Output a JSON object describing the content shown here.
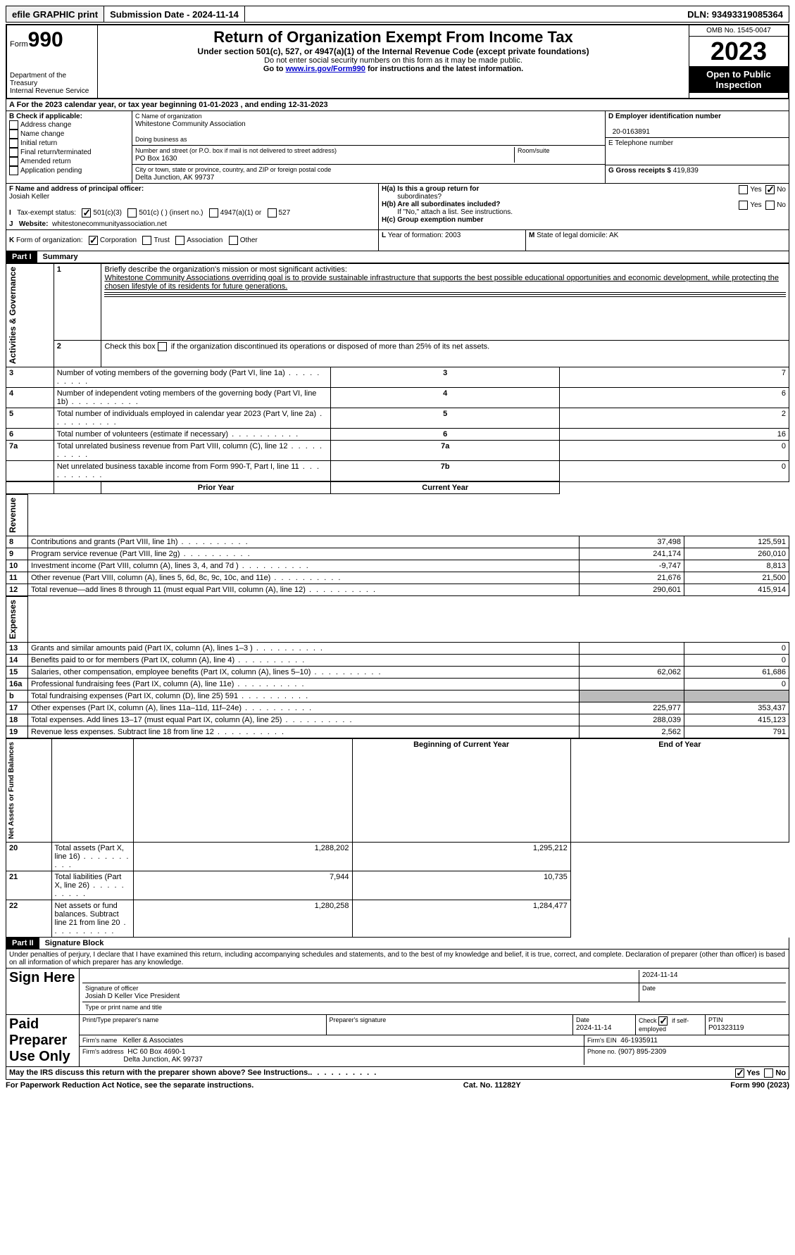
{
  "topbar": {
    "efile": "efile GRAPHIC print",
    "submission": "Submission Date - 2024-11-14",
    "dln": "DLN: 93493319085364"
  },
  "header": {
    "form_prefix": "Form",
    "form_no": "990",
    "title": "Return of Organization Exempt From Income Tax",
    "sub1": "Under section 501(c), 527, or 4947(a)(1) of the Internal Revenue Code (except private foundations)",
    "sub2": "Do not enter social security numbers on this form as it may be made public.",
    "sub3_a": "Go to ",
    "sub3_link": "www.irs.gov/Form990",
    "sub3_b": " for instructions and the latest information.",
    "dept": "Department of the Treasury",
    "irs": "Internal Revenue Service",
    "omb": "OMB No. 1545-0047",
    "year": "2023",
    "inspect1": "Open to Public",
    "inspect2": "Inspection"
  },
  "A": {
    "label": "A",
    "text": "For the 2023 calendar year, or tax year beginning 01-01-2023",
    "mid": ", and ending 12-31-2023"
  },
  "B": {
    "label": "B Check if applicable:",
    "items": [
      "Address change",
      "Name change",
      "Initial return",
      "Final return/terminated",
      "Amended return",
      "Application pending"
    ]
  },
  "C": {
    "name_lbl": "C Name of organization",
    "name": "Whitestone Community Association",
    "dba_lbl": "Doing business as",
    "dba": "",
    "street_lbl": "Number and street (or P.O. box if mail is not delivered to street address)",
    "street": "PO Box 1630",
    "room_lbl": "Room/suite",
    "room": "",
    "city_lbl": "City or town, state or province, country, and ZIP or foreign postal code",
    "city": "Delta Junction, AK  99737"
  },
  "D": {
    "lbl": "D Employer identification number",
    "val": "20-0163891"
  },
  "E": {
    "lbl": "E Telephone number",
    "val": ""
  },
  "G": {
    "lbl": "G Gross receipts $",
    "val": "419,839"
  },
  "F": {
    "lbl": "F  Name and address of principal officer:",
    "val": "Josiah Keller"
  },
  "H": {
    "a": "H(a)  Is this a group return for",
    "a2": "subordinates?",
    "b": "H(b)  Are all subordinates included?",
    "b2": "If \"No,\" attach a list. See instructions.",
    "c": "H(c)  Group exemption number",
    "yes": "Yes",
    "no": "No"
  },
  "I": {
    "lbl": "I",
    "text": "Tax-exempt status:",
    "opts": [
      "501(c)(3)",
      "501(c) (  ) (insert no.)",
      "4947(a)(1) or",
      "527"
    ]
  },
  "J": {
    "lbl": "J",
    "text": "Website:",
    "val": "whitestonecommunityassociation.net"
  },
  "K": {
    "lbl": "K",
    "text": "Form of organization:",
    "opts": [
      "Corporation",
      "Trust",
      "Association",
      "Other"
    ]
  },
  "L": {
    "lbl": "L",
    "text": "Year of formation: 2003"
  },
  "M": {
    "lbl": "M",
    "text": "State of legal domicile: AK"
  },
  "part1": {
    "hdr": "Part I",
    "ttl": "Summary"
  },
  "sections": {
    "s1": "Activities & Governance",
    "s2": "Revenue",
    "s3": "Expenses",
    "s4": "Net Assets or Fund Balances"
  },
  "summary": {
    "l1a": "1",
    "l1b": "Briefly describe the organization's mission or most significant activities:",
    "l1c": "Whitestone Community Associations overriding goal is to provide sustainable infrastructure that supports the best possible educational opportunities and economic development, while protecting the chosen lifestyle of its residents for future generations.",
    "l2": "Check this box",
    "l2b": "if the organization discontinued its operations or disposed of more than 25% of its net assets.",
    "rows1": [
      {
        "n": "3",
        "d": "Number of voting members of the governing body (Part VI, line 1a)",
        "b": "3",
        "v": "7"
      },
      {
        "n": "4",
        "d": "Number of independent voting members of the governing body (Part VI, line 1b)",
        "b": "4",
        "v": "6"
      },
      {
        "n": "5",
        "d": "Total number of individuals employed in calendar year 2023 (Part V, line 2a)",
        "b": "5",
        "v": "2"
      },
      {
        "n": "6",
        "d": "Total number of volunteers (estimate if necessary)",
        "b": "6",
        "v": "16"
      },
      {
        "n": "7a",
        "d": "Total unrelated business revenue from Part VIII, column (C), line 12",
        "b": "7a",
        "v": "0"
      },
      {
        "n": "",
        "d": "Net unrelated business taxable income from Form 990-T, Part I, line 11",
        "b": "7b",
        "v": "0"
      }
    ],
    "col_prior": "Prior Year",
    "col_curr": "Current Year",
    "rows2": [
      {
        "n": "8",
        "d": "Contributions and grants (Part VIII, line 1h)",
        "p": "37,498",
        "c": "125,591"
      },
      {
        "n": "9",
        "d": "Program service revenue (Part VIII, line 2g)",
        "p": "241,174",
        "c": "260,010"
      },
      {
        "n": "10",
        "d": "Investment income (Part VIII, column (A), lines 3, 4, and 7d )",
        "p": "-9,747",
        "c": "8,813"
      },
      {
        "n": "11",
        "d": "Other revenue (Part VIII, column (A), lines 5, 6d, 8c, 9c, 10c, and 11e)",
        "p": "21,676",
        "c": "21,500"
      },
      {
        "n": "12",
        "d": "Total revenue—add lines 8 through 11 (must equal Part VIII, column (A), line 12)",
        "p": "290,601",
        "c": "415,914"
      }
    ],
    "rows3": [
      {
        "n": "13",
        "d": "Grants and similar amounts paid (Part IX, column (A), lines 1–3 )",
        "p": "",
        "c": "0"
      },
      {
        "n": "14",
        "d": "Benefits paid to or for members (Part IX, column (A), line 4)",
        "p": "",
        "c": "0"
      },
      {
        "n": "15",
        "d": "Salaries, other compensation, employee benefits (Part IX, column (A), lines 5–10)",
        "p": "62,062",
        "c": "61,686"
      },
      {
        "n": "16a",
        "d": "Professional fundraising fees (Part IX, column (A), line 11e)",
        "p": "",
        "c": "0"
      },
      {
        "n": "b",
        "d": "Total fundraising expenses (Part IX, column (D), line 25) 591",
        "p": "SHADE",
        "c": "SHADE"
      },
      {
        "n": "17",
        "d": "Other expenses (Part IX, column (A), lines 11a–11d, 11f–24e)",
        "p": "225,977",
        "c": "353,437"
      },
      {
        "n": "18",
        "d": "Total expenses. Add lines 13–17 (must equal Part IX, column (A), line 25)",
        "p": "288,039",
        "c": "415,123"
      },
      {
        "n": "19",
        "d": "Revenue less expenses. Subtract line 18 from line 12",
        "p": "2,562",
        "c": "791"
      }
    ],
    "col_begin": "Beginning of Current Year",
    "col_end": "End of Year",
    "rows4": [
      {
        "n": "20",
        "d": "Total assets (Part X, line 16)",
        "p": "1,288,202",
        "c": "1,295,212"
      },
      {
        "n": "21",
        "d": "Total liabilities (Part X, line 26)",
        "p": "7,944",
        "c": "10,735"
      },
      {
        "n": "22",
        "d": "Net assets or fund balances. Subtract line 21 from line 20",
        "p": "1,280,258",
        "c": "1,284,477"
      }
    ]
  },
  "part2": {
    "hdr": "Part II",
    "ttl": "Signature Block",
    "decl": "Under penalties of perjury, I declare that I have examined this return, including accompanying schedules and statements, and to the best of my knowledge and belief, it is true, correct, and complete. Declaration of preparer (other than officer) is based on all information of which preparer has any knowledge."
  },
  "sign": {
    "side": "Sign Here",
    "sig_lbl": "Signature of officer",
    "date_lbl": "Date",
    "date": "2024-11-14",
    "officer": "Josiah D Keller  Vice President",
    "type_lbl": "Type or print name and title"
  },
  "paid": {
    "side": "Paid Preparer Use Only",
    "pname_lbl": "Print/Type preparer's name",
    "psig_lbl": "Preparer's signature",
    "pdate_lbl": "Date",
    "pdate": "2024-11-14",
    "check_lbl": "Check",
    "check_txt": "if self-employed",
    "ptin_lbl": "PTIN",
    "ptin": "P01323119",
    "firm_lbl": "Firm's name",
    "firm": "Keller & Associates",
    "fein_lbl": "Firm's EIN",
    "fein": "46-1935911",
    "faddr_lbl": "Firm's address",
    "faddr1": "HC 60 Box 4690-1",
    "faddr2": "Delta Junction, AK  99737",
    "phone_lbl": "Phone no.",
    "phone": "(907) 895-2309"
  },
  "discuss": {
    "text": "May the IRS discuss this return with the preparer shown above? See Instructions.",
    "yes": "Yes",
    "no": "No"
  },
  "footer": {
    "pra": "For Paperwork Reduction Act Notice, see the separate instructions.",
    "cat": "Cat. No. 11282Y",
    "form": "Form 990 (2023)"
  }
}
